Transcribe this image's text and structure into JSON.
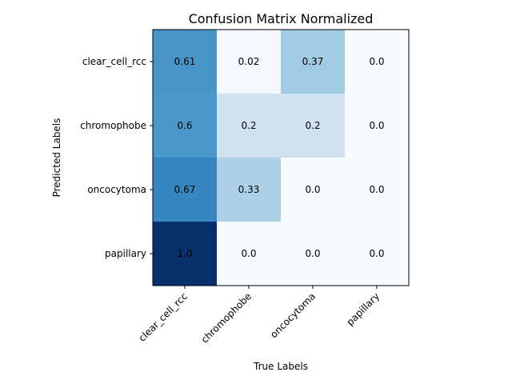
{
  "chart_data": {
    "type": "heatmap",
    "title": "Confusion Matrix Normalized",
    "xlabel": "True Labels",
    "ylabel": "Predicted Labels",
    "x_categories": [
      "clear_cell_rcc",
      "chromophobe",
      "oncocytoma",
      "papillary"
    ],
    "y_categories": [
      "clear_cell_rcc",
      "chromophobe",
      "oncocytoma",
      "papillary"
    ],
    "values": [
      [
        0.61,
        0.02,
        0.37,
        0.0
      ],
      [
        0.6,
        0.2,
        0.2,
        0.0
      ],
      [
        0.67,
        0.33,
        0.0,
        0.0
      ],
      [
        1.0,
        0.0,
        0.0,
        0.0
      ]
    ],
    "value_labels": [
      [
        "0.61",
        "0.02",
        "0.37",
        "0.0"
      ],
      [
        "0.6",
        "0.2",
        "0.2",
        "0.0"
      ],
      [
        "0.67",
        "0.33",
        "0.0",
        "0.0"
      ],
      [
        "1.0",
        "0.0",
        "0.0",
        "0.0"
      ]
    ],
    "colormap": "Blues",
    "vmin": 0,
    "vmax": 1,
    "colorbar": false,
    "xtick_rotation": 45,
    "annotation_color": "#000000"
  }
}
